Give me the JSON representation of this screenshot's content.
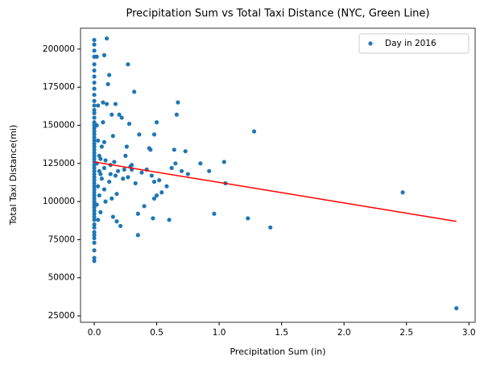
{
  "chart_data": {
    "type": "scatter",
    "title": "Precipitation Sum vs Total Taxi Distance (NYC, Green Line)",
    "x_label": "Precipitation Sum (in)",
    "y_label": "Total Taxi Distance(mi)",
    "xlim": [
      -0.11,
      3.05
    ],
    "ylim": [
      20800,
      213700
    ],
    "xticks": [
      {
        "value": 0,
        "label": "0.0"
      },
      0.5,
      {
        "value": 1,
        "label": "1.0"
      },
      1.5,
      {
        "value": 2,
        "label": "2.0"
      },
      2.5,
      {
        "value": 3,
        "label": "3.0"
      }
    ],
    "yticks": [
      25000,
      50000,
      75000,
      100000,
      125000,
      150000,
      175000,
      200000
    ],
    "legend": "upper right",
    "series": [
      {
        "name": "Day in 2016",
        "color": "#1f77b4",
        "x": [
          0,
          0,
          0,
          0,
          0,
          0,
          0,
          0,
          0,
          0,
          0,
          0,
          0,
          0,
          0,
          0,
          0,
          0,
          0,
          0,
          0,
          0,
          0,
          0,
          0,
          0,
          0,
          0,
          0,
          0,
          0,
          0,
          0,
          0,
          0,
          0,
          0,
          0,
          0,
          0,
          0,
          0,
          0,
          0,
          0,
          0,
          0,
          0,
          0,
          0,
          0,
          0,
          0,
          0,
          0,
          0,
          0,
          0.02,
          0.03,
          0.02,
          0.03,
          0.04,
          0.02,
          0.05,
          0.03,
          0.04,
          0.02,
          0.05,
          0.03,
          0.04,
          0.05,
          0.06,
          0.06,
          0.07,
          0.07,
          0.08,
          0.08,
          0.08,
          0.08,
          0.09,
          0.09,
          0.1,
          0.1,
          0.11,
          0.12,
          0.12,
          0.13,
          0.13,
          0.14,
          0.14,
          0.15,
          0.15,
          0.16,
          0.17,
          0.17,
          0.18,
          0.18,
          0.19,
          0.2,
          0.21,
          0.22,
          0.23,
          0.24,
          0.25,
          0.26,
          0.27,
          0.27,
          0.28,
          0.29,
          0.3,
          0.3,
          0.32,
          0.33,
          0.35,
          0.35,
          0.36,
          0.38,
          0.4,
          0.42,
          0.44,
          0.45,
          0.46,
          0.47,
          0.48,
          0.48,
          0.48,
          0.5,
          0.5,
          0.52,
          0.54,
          0.58,
          0.6,
          0.62,
          0.64,
          0.65,
          0.66,
          0.67,
          0.7,
          0.73,
          0.75,
          0.85,
          0.92,
          0.96,
          1.04,
          1.05,
          1.23,
          1.28,
          1.41,
          2.47,
          2.9
        ],
        "values": [
          61000,
          63000,
          68000,
          73000,
          76000,
          78000,
          80000,
          83000,
          85000,
          88000,
          90000,
          92000,
          94000,
          96000,
          98000,
          100000,
          102000,
          104000,
          106000,
          108000,
          110000,
          112000,
          114000,
          116000,
          118000,
          120000,
          122000,
          124000,
          126000,
          128000,
          130000,
          132000,
          134000,
          136000,
          138000,
          140000,
          142000,
          144000,
          146000,
          148000,
          150000,
          152000,
          155000,
          158000,
          160000,
          163000,
          166000,
          170000,
          174000,
          178000,
          182000,
          186000,
          190000,
          195000,
          199000,
          203000,
          206000,
          195000,
          163000,
          150000,
          140000,
          130000,
          125000,
          118000,
          110000,
          104000,
          98000,
          93000,
          88000,
          120000,
          128000,
          115000,
          136000,
          165000,
          152000,
          108000,
          122000,
          196000,
          139000,
          100000,
          127000,
          164000,
          207000,
          177000,
          183000,
          113000,
          124000,
          118000,
          102000,
          157000,
          143000,
          90000,
          126000,
          117000,
          164000,
          87000,
          105000,
          120000,
          157000,
          84000,
          155000,
          115000,
          121000,
          130000,
          136000,
          190000,
          116000,
          151000,
          123000,
          121000,
          124000,
          172000,
          112000,
          78000,
          92000,
          144000,
          119000,
          97000,
          121000,
          135000,
          134000,
          117000,
          89000,
          144000,
          102000,
          113000,
          152000,
          104000,
          114000,
          106000,
          110000,
          88000,
          122000,
          134000,
          125000,
          157000,
          165000,
          120000,
          133000,
          118000,
          125000,
          120000,
          92000,
          126000,
          112000,
          89000,
          146000,
          83000,
          106000,
          30000
        ]
      }
    ],
    "trend": {
      "color": "#ff0000",
      "x": [
        0,
        2.9
      ],
      "values": [
        126000,
        87000
      ]
    }
  }
}
